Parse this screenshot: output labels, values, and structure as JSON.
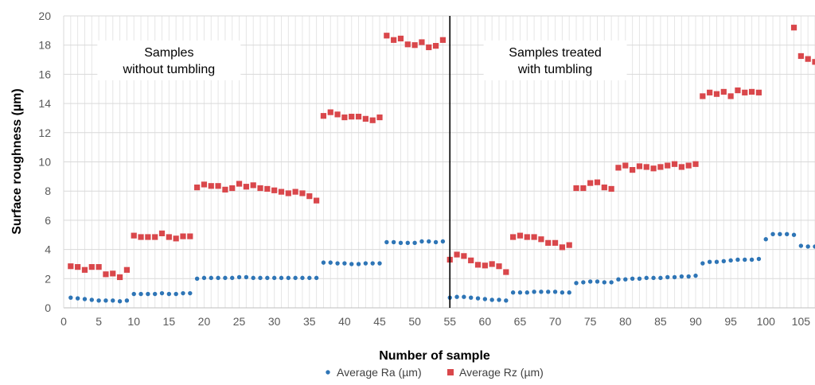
{
  "chart_data": {
    "type": "scatter",
    "xlabel": "Number of sample",
    "ylabel": "Surface roughness (µm)",
    "xlim": [
      0,
      107
    ],
    "ylim": [
      0,
      20
    ],
    "xticks": [
      0,
      5,
      10,
      15,
      20,
      25,
      30,
      35,
      40,
      45,
      50,
      55,
      60,
      65,
      70,
      75,
      80,
      85,
      90,
      95,
      100,
      105
    ],
    "yticks": [
      0,
      2,
      4,
      6,
      8,
      10,
      12,
      14,
      16,
      18,
      20
    ],
    "grid": true,
    "legend_position": "bottom",
    "divider_x": 55,
    "annotations": [
      {
        "lines": [
          "Samples",
          "without tumbling"
        ],
        "x": 15,
        "y": 16.9
      },
      {
        "lines": [
          "Samples treated",
          "with tumbling"
        ],
        "x": 70,
        "y": 16.9
      }
    ],
    "series": [
      {
        "name": "Average Ra (µm)",
        "marker": "circle",
        "color": "#2E75B6",
        "x": [
          1,
          2,
          3,
          4,
          5,
          6,
          7,
          8,
          9,
          10,
          11,
          12,
          13,
          14,
          15,
          16,
          17,
          18,
          19,
          20,
          21,
          22,
          23,
          24,
          25,
          26,
          27,
          28,
          29,
          30,
          31,
          32,
          33,
          34,
          35,
          36,
          37,
          38,
          39,
          40,
          41,
          42,
          43,
          44,
          45,
          46,
          47,
          48,
          49,
          50,
          51,
          52,
          53,
          54,
          55,
          56,
          57,
          58,
          59,
          60,
          61,
          62,
          63,
          64,
          65,
          66,
          67,
          68,
          69,
          70,
          71,
          72,
          73,
          74,
          75,
          76,
          77,
          78,
          79,
          80,
          81,
          82,
          83,
          84,
          85,
          86,
          87,
          88,
          89,
          90,
          91,
          92,
          93,
          94,
          95,
          96,
          97,
          98,
          99,
          100,
          101,
          102,
          103,
          104,
          105,
          106,
          107
        ],
        "y": [
          0.7,
          0.65,
          0.6,
          0.55,
          0.5,
          0.5,
          0.5,
          0.45,
          0.5,
          0.95,
          0.95,
          0.95,
          0.95,
          1.0,
          0.95,
          0.95,
          1.0,
          1.0,
          2.0,
          2.05,
          2.05,
          2.05,
          2.05,
          2.05,
          2.1,
          2.1,
          2.05,
          2.05,
          2.05,
          2.05,
          2.05,
          2.05,
          2.05,
          2.05,
          2.05,
          2.05,
          3.1,
          3.1,
          3.05,
          3.05,
          3.0,
          3.0,
          3.05,
          3.05,
          3.05,
          4.5,
          4.5,
          4.45,
          4.45,
          4.45,
          4.55,
          4.55,
          4.5,
          4.55,
          0.7,
          0.75,
          0.75,
          0.7,
          0.65,
          0.6,
          0.55,
          0.55,
          0.5,
          1.05,
          1.05,
          1.05,
          1.1,
          1.1,
          1.1,
          1.1,
          1.05,
          1.05,
          1.7,
          1.75,
          1.8,
          1.8,
          1.75,
          1.75,
          1.95,
          1.95,
          2.0,
          2.0,
          2.05,
          2.05,
          2.05,
          2.1,
          2.1,
          2.15,
          2.15,
          2.2,
          3.05,
          3.15,
          3.15,
          3.2,
          3.25,
          3.3,
          3.3,
          3.3,
          3.35,
          4.7,
          5.05,
          5.05,
          5.05,
          5.0,
          4.25,
          4.2,
          4.2
        ]
      },
      {
        "name": "Average Rz (µm)",
        "marker": "square",
        "color": "#D9474B",
        "x": [
          1,
          2,
          3,
          4,
          5,
          6,
          7,
          8,
          9,
          10,
          11,
          12,
          13,
          14,
          15,
          16,
          17,
          18,
          19,
          20,
          21,
          22,
          23,
          24,
          25,
          26,
          27,
          28,
          29,
          30,
          31,
          32,
          33,
          34,
          35,
          36,
          37,
          38,
          39,
          40,
          41,
          42,
          43,
          44,
          45,
          46,
          47,
          48,
          49,
          50,
          51,
          52,
          53,
          54,
          55,
          56,
          57,
          58,
          59,
          60,
          61,
          62,
          63,
          64,
          65,
          66,
          67,
          68,
          69,
          70,
          71,
          72,
          73,
          74,
          75,
          76,
          77,
          78,
          79,
          80,
          81,
          82,
          83,
          84,
          85,
          86,
          87,
          88,
          89,
          90,
          91,
          92,
          93,
          94,
          95,
          96,
          97,
          98,
          99,
          104,
          105,
          106,
          107
        ],
        "y": [
          2.85,
          2.8,
          2.6,
          2.8,
          2.8,
          2.3,
          2.35,
          2.1,
          2.6,
          4.95,
          4.85,
          4.85,
          4.85,
          5.1,
          4.85,
          4.75,
          4.9,
          4.9,
          8.25,
          8.45,
          8.35,
          8.35,
          8.1,
          8.2,
          8.5,
          8.3,
          8.4,
          8.2,
          8.15,
          8.05,
          7.95,
          7.85,
          7.95,
          7.85,
          7.65,
          7.35,
          13.15,
          13.4,
          13.25,
          13.05,
          13.1,
          13.1,
          12.95,
          12.85,
          13.05,
          18.65,
          18.35,
          18.45,
          18.05,
          18.0,
          18.2,
          17.85,
          17.95,
          18.35,
          3.3,
          3.65,
          3.55,
          3.25,
          2.95,
          2.9,
          3.0,
          2.85,
          2.45,
          4.85,
          4.95,
          4.85,
          4.85,
          4.7,
          4.45,
          4.45,
          4.15,
          4.3,
          8.2,
          8.2,
          8.55,
          8.6,
          8.25,
          8.15,
          9.6,
          9.75,
          9.45,
          9.7,
          9.65,
          9.55,
          9.65,
          9.75,
          9.85,
          9.65,
          9.75,
          9.85,
          14.5,
          14.75,
          14.65,
          14.8,
          14.5,
          14.9,
          14.75,
          14.8,
          14.75,
          19.2,
          17.25,
          17.05,
          16.85
        ]
      }
    ]
  }
}
